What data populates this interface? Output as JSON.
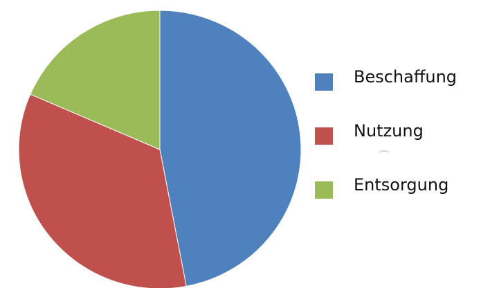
{
  "chart_data": {
    "type": "pie",
    "title": "",
    "start_angle_deg": 0,
    "direction": "clockwise",
    "legend_position": "right",
    "slices": [
      {
        "label": "Beschaffung",
        "value": 47.0,
        "color": "#4F81BD"
      },
      {
        "label": "Nutzung",
        "value": 34.5,
        "color": "#C0504D"
      },
      {
        "label": "Entsorgung",
        "value": 18.5,
        "color": "#9BBB59"
      }
    ]
  }
}
